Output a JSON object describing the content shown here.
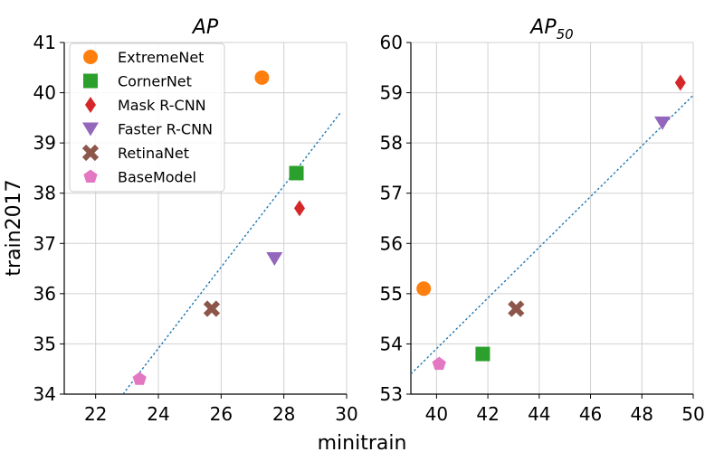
{
  "figure": {
    "xlabel": "minitrain",
    "ylabel": "train2017"
  },
  "colors": {
    "ExtremeNet": "#ff7f0e",
    "CornerNet": "#2ca02c",
    "Mask R-CNN": "#d62728",
    "Faster R-CNN": "#9467bd",
    "RetinaNet": "#8c564b",
    "BaseModel": "#e377c2",
    "trend": "#1f77b4",
    "grid": "#d0d0d0"
  },
  "legend": {
    "placement": "top-left of left panel",
    "entries": [
      {
        "name": "ExtremeNet",
        "marker": "circle"
      },
      {
        "name": "CornerNet",
        "marker": "square"
      },
      {
        "name": "Mask R-CNN",
        "marker": "thin-diamond"
      },
      {
        "name": "Faster R-CNN",
        "marker": "triangle-down"
      },
      {
        "name": "RetinaNet",
        "marker": "x-filled"
      },
      {
        "name": "BaseModel",
        "marker": "pentagon"
      }
    ]
  },
  "chart_data": [
    {
      "type": "scatter",
      "title": "AP",
      "title_sub": "",
      "xlim": [
        21,
        30
      ],
      "ylim": [
        34,
        41
      ],
      "xticks": [
        22,
        24,
        26,
        28,
        30
      ],
      "yticks": [
        34,
        35,
        36,
        37,
        38,
        39,
        40,
        41
      ],
      "grid": true,
      "points": [
        {
          "name": "ExtremeNet",
          "x": 27.3,
          "y": 40.3
        },
        {
          "name": "CornerNet",
          "x": 28.4,
          "y": 38.4
        },
        {
          "name": "Mask R-CNN",
          "x": 28.5,
          "y": 37.7
        },
        {
          "name": "Faster R-CNN",
          "x": 27.7,
          "y": 36.7
        },
        {
          "name": "RetinaNet",
          "x": 25.7,
          "y": 35.7
        },
        {
          "name": "BaseModel",
          "x": 23.4,
          "y": 34.3
        }
      ],
      "trend_line": {
        "style": "dotted",
        "from": {
          "x": 22.87,
          "y": 34.0
        },
        "to": {
          "x": 29.8,
          "y": 39.6
        }
      }
    },
    {
      "type": "scatter",
      "title": "AP",
      "title_sub": "50",
      "xlim": [
        39,
        50
      ],
      "ylim": [
        53,
        60
      ],
      "xticks": [
        40,
        42,
        44,
        46,
        48,
        50
      ],
      "yticks": [
        53,
        54,
        55,
        56,
        57,
        58,
        59,
        60
      ],
      "grid": true,
      "points": [
        {
          "name": "ExtremeNet",
          "x": 39.5,
          "y": 55.1
        },
        {
          "name": "CornerNet",
          "x": 41.8,
          "y": 53.8
        },
        {
          "name": "Mask R-CNN",
          "x": 49.5,
          "y": 59.2
        },
        {
          "name": "Faster R-CNN",
          "x": 48.8,
          "y": 58.4
        },
        {
          "name": "RetinaNet",
          "x": 43.1,
          "y": 54.7
        },
        {
          "name": "BaseModel",
          "x": 40.1,
          "y": 53.6
        }
      ],
      "trend_line": {
        "style": "dotted",
        "from": {
          "x": 39.0,
          "y": 53.4
        },
        "to": {
          "x": 50.0,
          "y": 58.95
        }
      }
    }
  ]
}
